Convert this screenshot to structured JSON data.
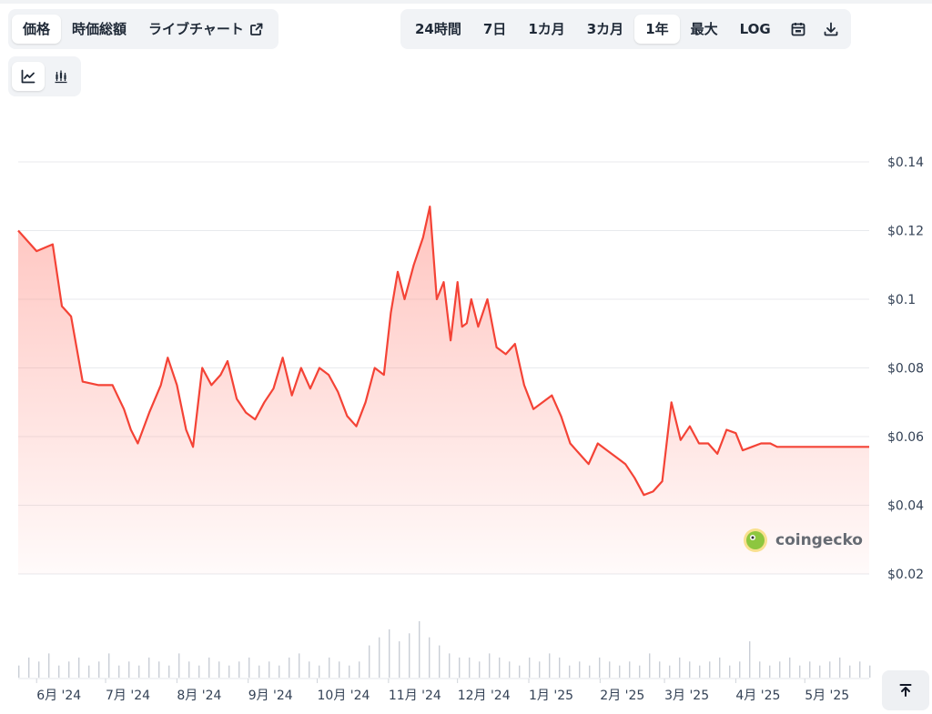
{
  "tabs_left": [
    "価格",
    "時価総額",
    "ライブチャート"
  ],
  "tabs_left_active": 0,
  "range_tabs": [
    "24時間",
    "7日",
    "1カ月",
    "3カ月",
    "1年",
    "最大",
    "LOG"
  ],
  "range_active": "1年",
  "icons": {
    "external_link": "external-link-icon",
    "calendar": "calendar-icon",
    "download": "download-icon",
    "line_chart": "line-chart-icon",
    "candlestick": "candlestick-icon",
    "scroll_top": "arrow-up-to-top-icon",
    "watermark_logo": "gecko-logo-icon"
  },
  "watermark": "coingecko",
  "colors": {
    "line": "#f44336",
    "fill_top": "#ff8a80",
    "volume": "#c9ced6",
    "grid": "#e8eaed"
  },
  "chart_data": {
    "type": "area",
    "series": [
      {
        "name": "",
        "x": [
          "2024-05-24",
          "2024-06-01",
          "2024-06-08",
          "2024-06-12",
          "2024-06-16",
          "2024-06-21",
          "2024-06-28",
          "2024-07-04",
          "2024-07-09",
          "2024-07-12",
          "2024-07-15",
          "2024-07-20",
          "2024-07-25",
          "2024-07-28",
          "2024-08-01",
          "2024-08-05",
          "2024-08-08",
          "2024-08-12",
          "2024-08-16",
          "2024-08-20",
          "2024-08-23",
          "2024-08-27",
          "2024-08-31",
          "2024-09-04",
          "2024-09-08",
          "2024-09-12",
          "2024-09-16",
          "2024-09-20",
          "2024-09-24",
          "2024-09-28",
          "2024-10-02",
          "2024-10-06",
          "2024-10-10",
          "2024-10-14",
          "2024-10-18",
          "2024-10-22",
          "2024-10-26",
          "2024-10-30",
          "2024-11-02",
          "2024-11-05",
          "2024-11-08",
          "2024-11-12",
          "2024-11-16",
          "2024-11-19",
          "2024-11-22",
          "2024-11-25",
          "2024-11-28",
          "2024-12-01",
          "2024-12-03",
          "2024-12-05",
          "2024-12-07",
          "2024-12-10",
          "2024-12-14",
          "2024-12-18",
          "2024-12-22",
          "2024-12-26",
          "2024-12-30",
          "2025-01-03",
          "2025-01-07",
          "2025-01-11",
          "2025-01-15",
          "2025-01-19",
          "2025-01-23",
          "2025-01-27",
          "2025-01-31",
          "2025-02-04",
          "2025-02-08",
          "2025-02-12",
          "2025-02-16",
          "2025-02-20",
          "2025-02-24",
          "2025-02-28",
          "2025-03-04",
          "2025-03-08",
          "2025-03-12",
          "2025-03-16",
          "2025-03-20",
          "2025-03-24",
          "2025-03-28",
          "2025-04-01",
          "2025-04-04",
          "2025-04-08",
          "2025-04-12",
          "2025-04-16",
          "2025-04-19",
          "2025-04-21",
          "2025-04-24",
          "2025-04-28",
          "2025-05-02",
          "2025-05-06",
          "2025-05-10",
          "2025-05-14",
          "2025-05-18",
          "2025-05-22",
          "2025-05-26",
          "2025-05-29"
        ],
        "values": [
          0.12,
          0.114,
          0.116,
          0.098,
          0.095,
          0.076,
          0.075,
          0.075,
          0.068,
          0.062,
          0.058,
          0.067,
          0.075,
          0.083,
          0.075,
          0.062,
          0.057,
          0.08,
          0.075,
          0.078,
          0.082,
          0.071,
          0.067,
          0.065,
          0.07,
          0.074,
          0.083,
          0.072,
          0.08,
          0.074,
          0.08,
          0.078,
          0.073,
          0.066,
          0.063,
          0.07,
          0.08,
          0.078,
          0.096,
          0.108,
          0.1,
          0.11,
          0.118,
          0.127,
          0.1,
          0.105,
          0.088,
          0.105,
          0.092,
          0.093,
          0.1,
          0.092,
          0.1,
          0.086,
          0.084,
          0.087,
          0.075,
          0.068,
          0.07,
          0.072,
          0.066,
          0.058,
          0.055,
          0.052,
          0.058,
          0.056,
          0.054,
          0.052,
          0.048,
          0.043,
          0.044,
          0.047,
          0.07,
          0.059,
          0.063,
          0.058,
          0.058,
          0.055,
          0.062,
          0.061,
          0.056,
          0.057,
          0.058,
          0.058,
          0.057,
          0.057,
          0.057,
          0.057,
          0.057,
          0.057,
          0.057,
          0.057,
          0.057,
          0.057,
          0.057,
          0.057
        ]
      }
    ],
    "x_ticks": [
      "6月 '24",
      "7月 '24",
      "8月 '24",
      "9月 '24",
      "10月 '24",
      "11月 '24",
      "12月 '24",
      "1月 '25",
      "2月 '25",
      "3月 '25",
      "4月 '25",
      "5月 '25"
    ],
    "y_ticks": [
      "$0.14",
      "$0.12",
      "$0.1",
      "$0.08",
      "$0.06",
      "$0.04",
      "$0.02"
    ],
    "ylim": [
      0.02,
      0.14
    ],
    "volume": [
      3,
      5,
      4,
      6,
      3,
      4,
      5,
      3,
      4,
      6,
      3,
      4,
      3,
      5,
      4,
      3,
      6,
      4,
      3,
      5,
      4,
      3,
      4,
      5,
      3,
      4,
      3,
      5,
      6,
      4,
      3,
      5,
      4,
      3,
      4,
      8,
      10,
      12,
      9,
      11,
      14,
      10,
      8,
      6,
      5,
      5,
      4,
      6,
      5,
      4,
      3,
      5,
      4,
      6,
      5,
      3,
      4,
      3,
      5,
      4,
      3,
      4,
      3,
      6,
      4,
      3,
      5,
      4,
      3,
      4,
      5,
      3,
      4,
      9,
      4,
      3,
      4,
      5,
      3,
      4,
      3,
      4,
      5,
      3,
      4,
      3
    ]
  }
}
